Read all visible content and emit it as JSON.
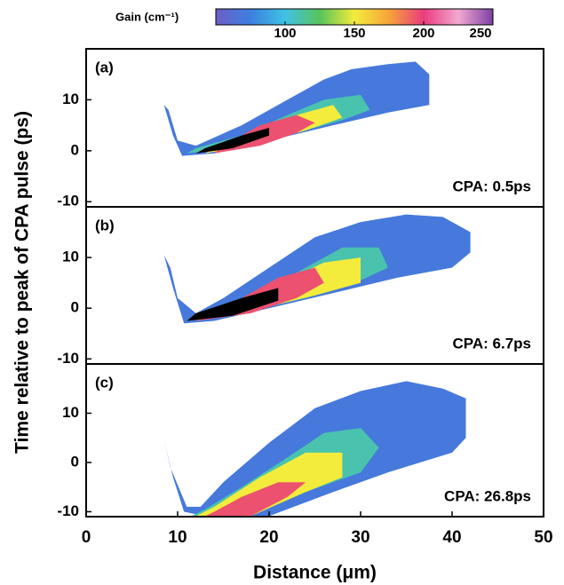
{
  "chart_data": [
    {
      "type": "contour",
      "label": "(a)",
      "annotation": "CPA: 0.5ps",
      "xlim": [
        0,
        50
      ],
      "ylim": [
        -11,
        20
      ],
      "yticks": [
        -10,
        0,
        10
      ],
      "colorbar": {
        "label": "Gain (cm⁻¹)",
        "lim": [
          50,
          250
        ],
        "ticks": [
          100,
          150,
          200,
          250
        ],
        "colors": [
          "#6c5fc7",
          "#3c7fe0",
          "#3fc2e6",
          "#57c45a",
          "#f4ec3c",
          "#f7a43a",
          "#e93c7e",
          "#f3a8d0",
          "#7d3fa6"
        ],
        "over_color": "#000000"
      },
      "regions": [
        {
          "level": 70,
          "x": [
            8.5,
            9.5,
            10.5,
            14,
            20,
            27,
            33,
            37.5,
            37.5,
            36,
            33,
            29,
            26,
            22,
            17,
            12,
            10,
            9
          ],
          "y": [
            9,
            3,
            -1,
            -0.5,
            2,
            5,
            7.5,
            9,
            15,
            17.5,
            17,
            16,
            14,
            10,
            5,
            1,
            2,
            8
          ]
        },
        {
          "level": 110,
          "x": [
            11,
            16,
            22,
            28,
            31,
            30,
            26,
            22,
            17,
            12
          ],
          "y": [
            -0.5,
            0.5,
            3,
            6,
            8,
            11,
            10,
            7,
            3,
            0.5
          ]
        },
        {
          "level": 150,
          "x": [
            13,
            18,
            24,
            28,
            27,
            23,
            18,
            14
          ],
          "y": [
            -0.5,
            1,
            4,
            6.5,
            9,
            7,
            3.5,
            0.5
          ]
        },
        {
          "level": 195,
          "x": [
            14,
            19,
            23,
            25,
            23,
            19,
            15
          ],
          "y": [
            -0.5,
            1,
            3.5,
            5.5,
            7,
            5,
            1
          ]
        },
        {
          "level": 260,
          "x": [
            12,
            16,
            20,
            20,
            17,
            13
          ],
          "y": [
            -0.5,
            0.5,
            3,
            4.5,
            3,
            0.5
          ]
        }
      ]
    },
    {
      "type": "contour",
      "label": "(b)",
      "annotation": "CPA: 6.7ps",
      "xlim": [
        0,
        50
      ],
      "ylim": [
        -11,
        20
      ],
      "yticks": [
        -10,
        0,
        10
      ],
      "ylabel": "Time relative to peak of CPA pulse (ps)",
      "regions": [
        {
          "level": 70,
          "x": [
            8.5,
            9.5,
            10.7,
            14,
            20,
            27,
            34,
            40,
            42,
            42,
            39,
            35,
            30,
            25,
            20,
            15,
            12,
            10,
            9.2
          ],
          "y": [
            10.5,
            4,
            -3,
            -2.5,
            0,
            3,
            6,
            8,
            11,
            15,
            18,
            18.5,
            17,
            14,
            8,
            2,
            -1,
            2,
            8
          ]
        },
        {
          "level": 110,
          "x": [
            11,
            17,
            24,
            30,
            33,
            32,
            28,
            23,
            17,
            12
          ],
          "y": [
            -2.5,
            -1,
            2,
            5.5,
            8,
            12,
            12,
            7,
            2,
            -1
          ]
        },
        {
          "level": 150,
          "x": [
            12,
            18,
            25,
            30,
            30,
            26,
            20,
            14
          ],
          "y": [
            -2.5,
            -0.5,
            2.5,
            5,
            10,
            9,
            4,
            -0.5
          ]
        },
        {
          "level": 195,
          "x": [
            12,
            18,
            23,
            26,
            25,
            21,
            16
          ],
          "y": [
            -2.5,
            -1,
            2,
            5,
            8,
            6,
            1
          ]
        },
        {
          "level": 260,
          "x": [
            11,
            16,
            21,
            21,
            17,
            12
          ],
          "y": [
            -2.5,
            -1.5,
            1.5,
            4,
            2,
            -1
          ]
        }
      ]
    },
    {
      "type": "contour",
      "label": "(c)",
      "annotation": "CPA: 26.8ps",
      "xlim": [
        0,
        50
      ],
      "ylim": [
        -11,
        20
      ],
      "yticks": [
        -10,
        0,
        10
      ],
      "xticks": [
        0,
        10,
        20,
        30,
        40,
        50
      ],
      "xlabel": "Distance (μm)",
      "regions": [
        {
          "level": 70,
          "x": [
            8.5,
            9.5,
            10.7,
            13,
            20,
            27,
            33,
            40,
            41.5,
            41.5,
            39,
            35,
            30,
            25,
            20,
            15,
            12.5,
            11,
            9.2
          ],
          "y": [
            4.5,
            -3,
            -10,
            -10.9,
            -10.9,
            -6,
            -2,
            2,
            5,
            13,
            15,
            16.5,
            14.5,
            11,
            4,
            -4,
            -9,
            -9,
            -1
          ]
        },
        {
          "level": 110,
          "x": [
            11.5,
            17,
            24,
            30,
            32,
            30,
            26,
            22,
            17,
            13
          ],
          "y": [
            -10.9,
            -10.9,
            -6,
            -2,
            3,
            7,
            6,
            1,
            -5,
            -9.5
          ]
        },
        {
          "level": 150,
          "x": [
            12,
            18,
            24,
            28,
            28,
            24,
            19,
            14
          ],
          "y": [
            -10.9,
            -10.9,
            -6,
            -3,
            2,
            2,
            -3,
            -9
          ]
        },
        {
          "level": 195,
          "x": [
            13,
            18,
            22,
            24,
            21,
            17,
            14
          ],
          "y": [
            -10.9,
            -10.9,
            -7,
            -4,
            -4,
            -7,
            -10
          ]
        }
      ]
    }
  ]
}
